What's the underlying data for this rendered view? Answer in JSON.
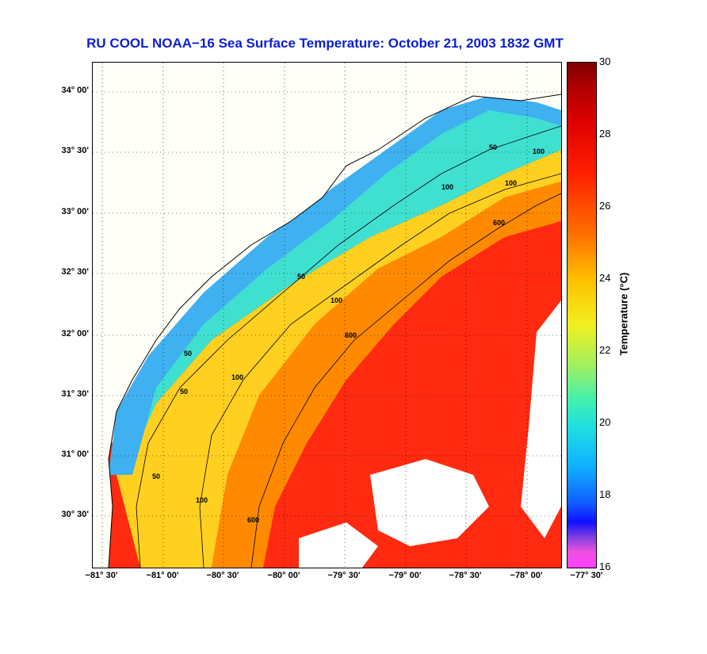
{
  "title": "RU COOL  NOAA−16  Sea Surface Temperature:  October 21, 2003 1832 GMT",
  "map": {
    "lat_ticks": [
      "34° 00'",
      "33° 30'",
      "33° 00'",
      "32° 30'",
      "32° 00'",
      "31° 30'",
      "31° 00'",
      "30° 30'"
    ],
    "lon_ticks": [
      "−81° 30'",
      "−81° 00'",
      "−80° 30'",
      "−80° 00'",
      "−79° 30'",
      "−79° 00'",
      "−78° 30'",
      "−78° 00'",
      "−77° 30'"
    ],
    "contour_labels": [
      {
        "text": "50"
      },
      {
        "text": "50"
      },
      {
        "text": "50"
      },
      {
        "text": "50"
      },
      {
        "text": "50"
      },
      {
        "text": "100"
      },
      {
        "text": "100"
      },
      {
        "text": "100"
      },
      {
        "text": "100"
      },
      {
        "text": "100"
      },
      {
        "text": "100"
      },
      {
        "text": "600"
      },
      {
        "text": "600"
      },
      {
        "text": "600"
      }
    ],
    "colors": {
      "land": "#fffff8",
      "coast": "#000000",
      "grid": "#000000"
    }
  },
  "colorbar": {
    "label": "Temperature (°C)",
    "ticks": [
      "30",
      "28",
      "26",
      "24",
      "22",
      "20",
      "18",
      "16"
    ],
    "min": 16,
    "max": 30
  }
}
